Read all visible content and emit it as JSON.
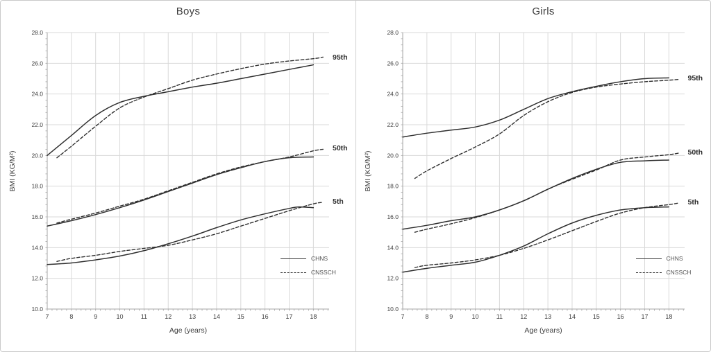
{
  "style": {
    "grid_color": "#d9d9d9",
    "axis_color": "#a6a6a6",
    "line_color": "#2f2f2f",
    "text_color": "#3f3f3f",
    "background": "#ffffff"
  },
  "chart_data": [
    {
      "type": "line",
      "title": "Boys",
      "xlabel": "Age (years)",
      "ylabel": "BMI (KG/M²)",
      "xlim": [
        7,
        18.65
      ],
      "ylim": [
        10,
        28
      ],
      "grid": true,
      "xticks": [
        7,
        8,
        9,
        10,
        11,
        12,
        13,
        14,
        15,
        16,
        17,
        18
      ],
      "xtick_labels": [
        "7",
        "8",
        "9",
        "10",
        "11",
        "12",
        "13",
        "14",
        "15",
        "16",
        "17",
        "18"
      ],
      "yticks": [
        10,
        12,
        14,
        16,
        18,
        20,
        22,
        24,
        26,
        28
      ],
      "ytick_labels": [
        "10.0",
        "12.0",
        "14.0",
        "16.0",
        "18.0",
        "20.0",
        "22.0",
        "24.0",
        "26.0",
        "28.0"
      ],
      "legend_position": "inside-lower-right",
      "legend": [
        {
          "label": "CHNS",
          "style": "solid"
        },
        {
          "label": "CNSSCH",
          "style": "dashed"
        }
      ],
      "curve_labels": [
        {
          "text": "95th",
          "bmi": 26.35
        },
        {
          "text": "50th",
          "bmi": 20.4
        },
        {
          "text": "5th",
          "bmi": 16.95
        }
      ],
      "series": [
        {
          "name": "CHNS 95th",
          "source": "CHNS",
          "percentile": "95th",
          "style": "solid",
          "x": [
            7,
            8,
            9,
            10,
            11,
            12,
            13,
            14,
            15,
            16,
            17,
            18
          ],
          "y": [
            20.0,
            21.3,
            22.6,
            23.45,
            23.85,
            24.15,
            24.45,
            24.7,
            25.0,
            25.3,
            25.6,
            25.9
          ]
        },
        {
          "name": "CNSSCH 95th",
          "source": "CNSSCH",
          "percentile": "95th",
          "style": "dashed",
          "x": [
            7.4,
            8,
            9,
            10,
            11,
            12,
            13,
            14,
            15,
            16,
            17,
            18,
            18.4
          ],
          "y": [
            19.85,
            20.6,
            21.9,
            23.1,
            23.8,
            24.35,
            24.9,
            25.3,
            25.65,
            25.95,
            26.15,
            26.3,
            26.4
          ]
        },
        {
          "name": "CHNS 50th",
          "source": "CHNS",
          "percentile": "50th",
          "style": "solid",
          "x": [
            7,
            8,
            9,
            10,
            11,
            12,
            13,
            14,
            15,
            16,
            17,
            18
          ],
          "y": [
            15.4,
            15.75,
            16.15,
            16.6,
            17.1,
            17.65,
            18.2,
            18.75,
            19.2,
            19.6,
            19.85,
            19.9
          ]
        },
        {
          "name": "CNSSCH 50th",
          "source": "CNSSCH",
          "percentile": "50th",
          "style": "dashed",
          "x": [
            7.4,
            8,
            9,
            10,
            11,
            12,
            13,
            14,
            15,
            16,
            17,
            18,
            18.4
          ],
          "y": [
            15.6,
            15.85,
            16.25,
            16.7,
            17.15,
            17.7,
            18.25,
            18.8,
            19.25,
            19.6,
            19.9,
            20.3,
            20.4
          ]
        },
        {
          "name": "CHNS 5th",
          "source": "CHNS",
          "percentile": "5th",
          "style": "solid",
          "x": [
            7,
            8,
            9,
            10,
            11,
            12,
            13,
            14,
            15,
            16,
            17,
            17.4,
            18
          ],
          "y": [
            12.9,
            13.0,
            13.2,
            13.45,
            13.8,
            14.25,
            14.75,
            15.3,
            15.8,
            16.2,
            16.55,
            16.65,
            16.6
          ]
        },
        {
          "name": "CNSSCH 5th",
          "source": "CNSSCH",
          "percentile": "5th",
          "style": "dashed",
          "x": [
            7.4,
            8,
            9,
            10,
            11,
            12,
            13,
            14,
            15,
            16,
            17,
            18,
            18.4
          ],
          "y": [
            13.1,
            13.3,
            13.5,
            13.75,
            13.95,
            14.15,
            14.5,
            14.9,
            15.4,
            15.9,
            16.4,
            16.85,
            16.95
          ]
        }
      ]
    },
    {
      "type": "line",
      "title": "Girls",
      "xlabel": "Age (years)",
      "ylabel": "BMI (KG/M²)",
      "xlim": [
        7,
        18.65
      ],
      "ylim": [
        10,
        28
      ],
      "grid": true,
      "xticks": [
        7,
        8,
        9,
        10,
        11,
        12,
        13,
        14,
        15,
        16,
        17,
        18
      ],
      "xtick_labels": [
        "7",
        "8",
        "9",
        "10",
        "11",
        "12",
        "13",
        "14",
        "15",
        "16",
        "17",
        "18"
      ],
      "yticks": [
        10,
        12,
        14,
        16,
        18,
        20,
        22,
        24,
        26,
        28
      ],
      "ytick_labels": [
        "10.0",
        "12.0",
        "14.0",
        "16.0",
        "18.0",
        "20.0",
        "22.0",
        "24.0",
        "26.0",
        "28.0"
      ],
      "legend_position": "inside-lower-right",
      "legend": [
        {
          "label": "CHNS",
          "style": "solid"
        },
        {
          "label": "CNSSCH",
          "style": "dashed"
        }
      ],
      "curve_labels": [
        {
          "text": "95th",
          "bmi": 25.0
        },
        {
          "text": "50th",
          "bmi": 20.15
        },
        {
          "text": "5th",
          "bmi": 16.9
        }
      ],
      "series": [
        {
          "name": "CHNS 95th",
          "source": "CHNS",
          "percentile": "95th",
          "style": "solid",
          "x": [
            7,
            8,
            9,
            10,
            11,
            12,
            13,
            14,
            15,
            16,
            17,
            18
          ],
          "y": [
            21.2,
            21.45,
            21.65,
            21.85,
            22.3,
            23.0,
            23.7,
            24.15,
            24.5,
            24.8,
            25.0,
            25.05
          ]
        },
        {
          "name": "CNSSCH 95th",
          "source": "CNSSCH",
          "percentile": "95th",
          "style": "dashed",
          "x": [
            7.5,
            8,
            9,
            10,
            11,
            12,
            13,
            14,
            15,
            16,
            17,
            18,
            18.4
          ],
          "y": [
            18.5,
            19.0,
            19.8,
            20.55,
            21.4,
            22.6,
            23.5,
            24.1,
            24.45,
            24.65,
            24.8,
            24.9,
            24.95
          ]
        },
        {
          "name": "CHNS 50th",
          "source": "CHNS",
          "percentile": "50th",
          "style": "solid",
          "x": [
            7,
            8,
            9,
            10,
            11,
            12,
            13,
            14,
            15,
            16,
            17,
            18
          ],
          "y": [
            15.2,
            15.45,
            15.75,
            16.0,
            16.45,
            17.05,
            17.8,
            18.5,
            19.1,
            19.55,
            19.65,
            19.7
          ]
        },
        {
          "name": "CNSSCH 50th",
          "source": "CNSSCH",
          "percentile": "50th",
          "style": "dashed",
          "x": [
            7.5,
            8,
            9,
            10,
            11,
            12,
            13,
            14,
            15,
            16,
            17,
            18,
            18.4
          ],
          "y": [
            15.0,
            15.2,
            15.55,
            15.95,
            16.45,
            17.05,
            17.8,
            18.45,
            19.05,
            19.7,
            19.9,
            20.05,
            20.15
          ]
        },
        {
          "name": "CHNS 5th",
          "source": "CHNS",
          "percentile": "5th",
          "style": "solid",
          "x": [
            7,
            8,
            9,
            10,
            11,
            12,
            13,
            14,
            15,
            16,
            17,
            18
          ],
          "y": [
            12.4,
            12.65,
            12.85,
            13.05,
            13.5,
            14.1,
            14.9,
            15.6,
            16.1,
            16.45,
            16.6,
            16.65
          ]
        },
        {
          "name": "CNSSCH 5th",
          "source": "CNSSCH",
          "percentile": "5th",
          "style": "dashed",
          "x": [
            7.5,
            8,
            9,
            10,
            11,
            12,
            13,
            14,
            15,
            16,
            17,
            18,
            18.4
          ],
          "y": [
            12.7,
            12.85,
            13.0,
            13.2,
            13.5,
            13.95,
            14.5,
            15.1,
            15.7,
            16.25,
            16.6,
            16.8,
            16.9
          ]
        }
      ]
    }
  ]
}
